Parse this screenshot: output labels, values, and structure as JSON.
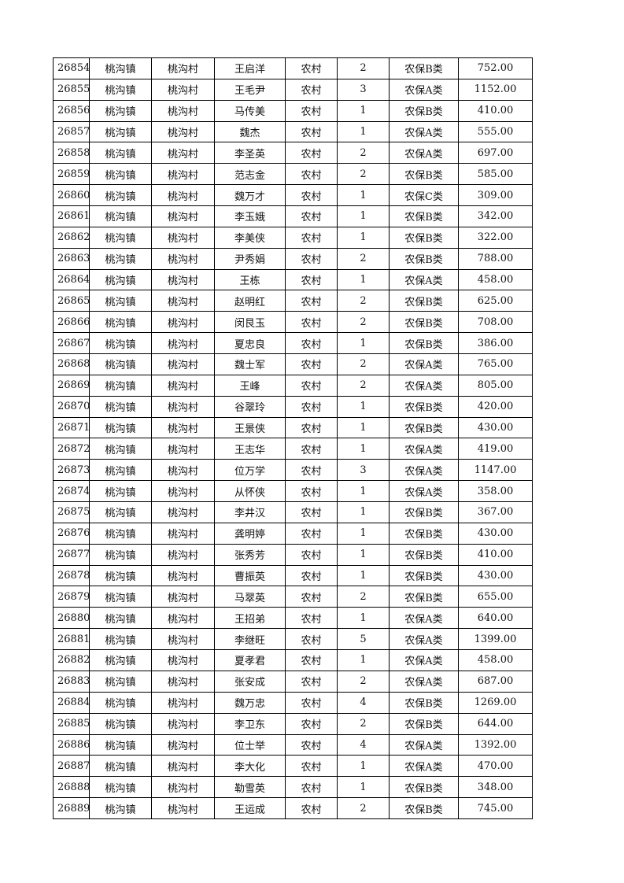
{
  "table": {
    "rows": [
      [
        "26854",
        "桃沟镇",
        "桃沟村",
        "王启洋",
        "农村",
        "2",
        "农保B类",
        "752.00"
      ],
      [
        "26855",
        "桃沟镇",
        "桃沟村",
        "王毛尹",
        "农村",
        "3",
        "农保A类",
        "1152.00"
      ],
      [
        "26856",
        "桃沟镇",
        "桃沟村",
        "马传美",
        "农村",
        "1",
        "农保B类",
        "410.00"
      ],
      [
        "26857",
        "桃沟镇",
        "桃沟村",
        "魏杰",
        "农村",
        "1",
        "农保A类",
        "555.00"
      ],
      [
        "26858",
        "桃沟镇",
        "桃沟村",
        "李圣英",
        "农村",
        "2",
        "农保A类",
        "697.00"
      ],
      [
        "26859",
        "桃沟镇",
        "桃沟村",
        "范志金",
        "农村",
        "2",
        "农保B类",
        "585.00"
      ],
      [
        "26860",
        "桃沟镇",
        "桃沟村",
        "魏万才",
        "农村",
        "1",
        "农保C类",
        "309.00"
      ],
      [
        "26861",
        "桃沟镇",
        "桃沟村",
        "李玉娥",
        "农村",
        "1",
        "农保B类",
        "342.00"
      ],
      [
        "26862",
        "桃沟镇",
        "桃沟村",
        "李美侠",
        "农村",
        "1",
        "农保B类",
        "322.00"
      ],
      [
        "26863",
        "桃沟镇",
        "桃沟村",
        "尹秀娟",
        "农村",
        "2",
        "农保B类",
        "788.00"
      ],
      [
        "26864",
        "桃沟镇",
        "桃沟村",
        "王栋",
        "农村",
        "1",
        "农保A类",
        "458.00"
      ],
      [
        "26865",
        "桃沟镇",
        "桃沟村",
        "赵明红",
        "农村",
        "2",
        "农保B类",
        "625.00"
      ],
      [
        "26866",
        "桃沟镇",
        "桃沟村",
        "闵艮玉",
        "农村",
        "2",
        "农保B类",
        "708.00"
      ],
      [
        "26867",
        "桃沟镇",
        "桃沟村",
        "夏忠良",
        "农村",
        "1",
        "农保B类",
        "386.00"
      ],
      [
        "26868",
        "桃沟镇",
        "桃沟村",
        "魏士军",
        "农村",
        "2",
        "农保A类",
        "765.00"
      ],
      [
        "26869",
        "桃沟镇",
        "桃沟村",
        "王峰",
        "农村",
        "2",
        "农保A类",
        "805.00"
      ],
      [
        "26870",
        "桃沟镇",
        "桃沟村",
        "谷翠玲",
        "农村",
        "1",
        "农保B类",
        "420.00"
      ],
      [
        "26871",
        "桃沟镇",
        "桃沟村",
        "王景侠",
        "农村",
        "1",
        "农保B类",
        "430.00"
      ],
      [
        "26872",
        "桃沟镇",
        "桃沟村",
        "王志华",
        "农村",
        "1",
        "农保A类",
        "419.00"
      ],
      [
        "26873",
        "桃沟镇",
        "桃沟村",
        "位万学",
        "农村",
        "3",
        "农保A类",
        "1147.00"
      ],
      [
        "26874",
        "桃沟镇",
        "桃沟村",
        "从怀侠",
        "农村",
        "1",
        "农保A类",
        "358.00"
      ],
      [
        "26875",
        "桃沟镇",
        "桃沟村",
        "李井汉",
        "农村",
        "1",
        "农保B类",
        "367.00"
      ],
      [
        "26876",
        "桃沟镇",
        "桃沟村",
        "龚明婷",
        "农村",
        "1",
        "农保B类",
        "430.00"
      ],
      [
        "26877",
        "桃沟镇",
        "桃沟村",
        "张秀芳",
        "农村",
        "1",
        "农保B类",
        "410.00"
      ],
      [
        "26878",
        "桃沟镇",
        "桃沟村",
        "曹振英",
        "农村",
        "1",
        "农保B类",
        "430.00"
      ],
      [
        "26879",
        "桃沟镇",
        "桃沟村",
        "马翠英",
        "农村",
        "2",
        "农保B类",
        "655.00"
      ],
      [
        "26880",
        "桃沟镇",
        "桃沟村",
        "王招弟",
        "农村",
        "1",
        "农保A类",
        "640.00"
      ],
      [
        "26881",
        "桃沟镇",
        "桃沟村",
        "李继旺",
        "农村",
        "5",
        "农保A类",
        "1399.00"
      ],
      [
        "26882",
        "桃沟镇",
        "桃沟村",
        "夏孝君",
        "农村",
        "1",
        "农保A类",
        "458.00"
      ],
      [
        "26883",
        "桃沟镇",
        "桃沟村",
        "张安成",
        "农村",
        "2",
        "农保A类",
        "687.00"
      ],
      [
        "26884",
        "桃沟镇",
        "桃沟村",
        "魏万忠",
        "农村",
        "4",
        "农保B类",
        "1269.00"
      ],
      [
        "26885",
        "桃沟镇",
        "桃沟村",
        "李卫东",
        "农村",
        "2",
        "农保B类",
        "644.00"
      ],
      [
        "26886",
        "桃沟镇",
        "桃沟村",
        "位士举",
        "农村",
        "4",
        "农保A类",
        "1392.00"
      ],
      [
        "26887",
        "桃沟镇",
        "桃沟村",
        "李大化",
        "农村",
        "1",
        "农保A类",
        "470.00"
      ],
      [
        "26888",
        "桃沟镇",
        "桃沟村",
        "勒雪英",
        "农村",
        "1",
        "农保B类",
        "348.00"
      ],
      [
        "26889",
        "桃沟镇",
        "桃沟村",
        "王运成",
        "农村",
        "2",
        "农保B类",
        "745.00"
      ]
    ]
  }
}
